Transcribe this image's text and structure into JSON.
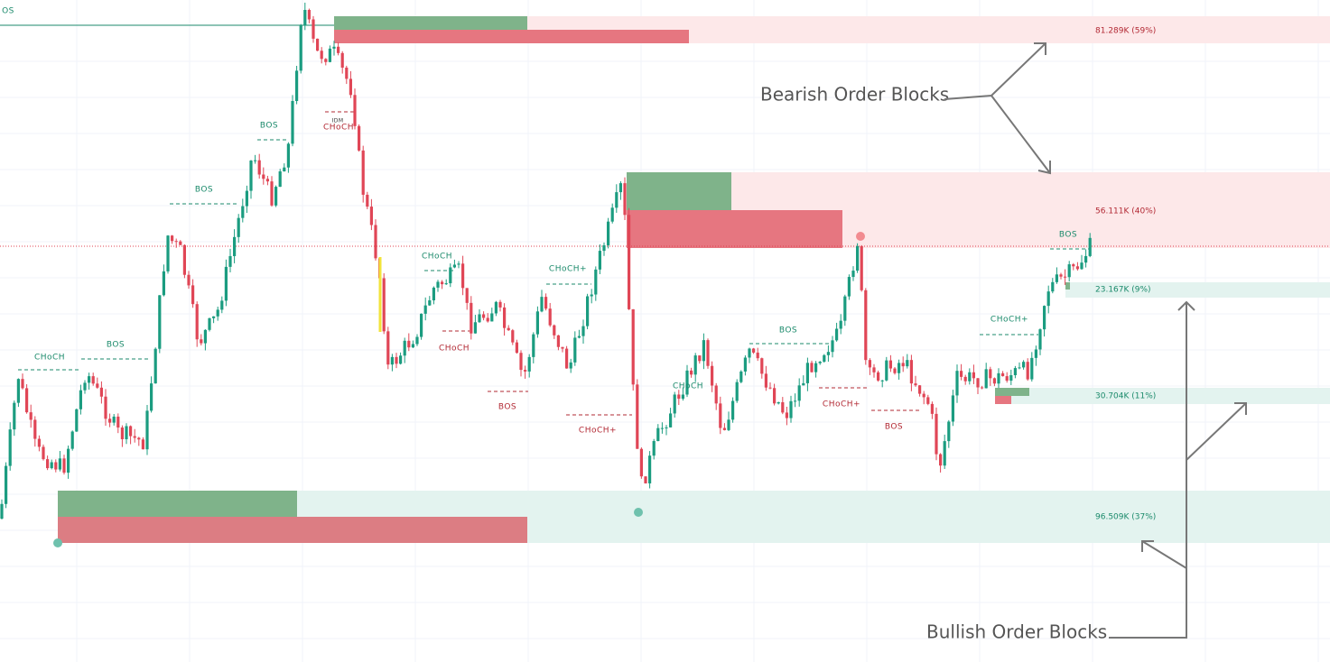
{
  "structure_labels": [
    {
      "text": "OS"
    },
    {
      "text": "CHoCH"
    },
    {
      "text": "BOS"
    },
    {
      "text": "BOS"
    },
    {
      "text": "BOS"
    },
    {
      "text": "IDM"
    },
    {
      "text": "CHoCH"
    },
    {
      "text": "CHoCH"
    },
    {
      "text": "CHoCH"
    },
    {
      "text": "CHoCH+"
    },
    {
      "text": "BOS"
    },
    {
      "text": "CHoCH+"
    },
    {
      "text": "CHoCH"
    },
    {
      "text": "BOS"
    },
    {
      "text": "CHoCH+"
    },
    {
      "text": "BOS"
    },
    {
      "text": "CHoCH+"
    },
    {
      "text": "BOS"
    }
  ],
  "order_blocks": [
    {
      "label": "81.289K (59%)"
    },
    {
      "label": "56.111K (40%)"
    },
    {
      "label": "23.167K (9%)"
    },
    {
      "label": "30.704K (11%)"
    },
    {
      "label": "96.509K (37%)"
    }
  ],
  "annotations": {
    "bearish": "Bearish Order Blocks",
    "bullish": "Bullish Order Blocks"
  }
}
